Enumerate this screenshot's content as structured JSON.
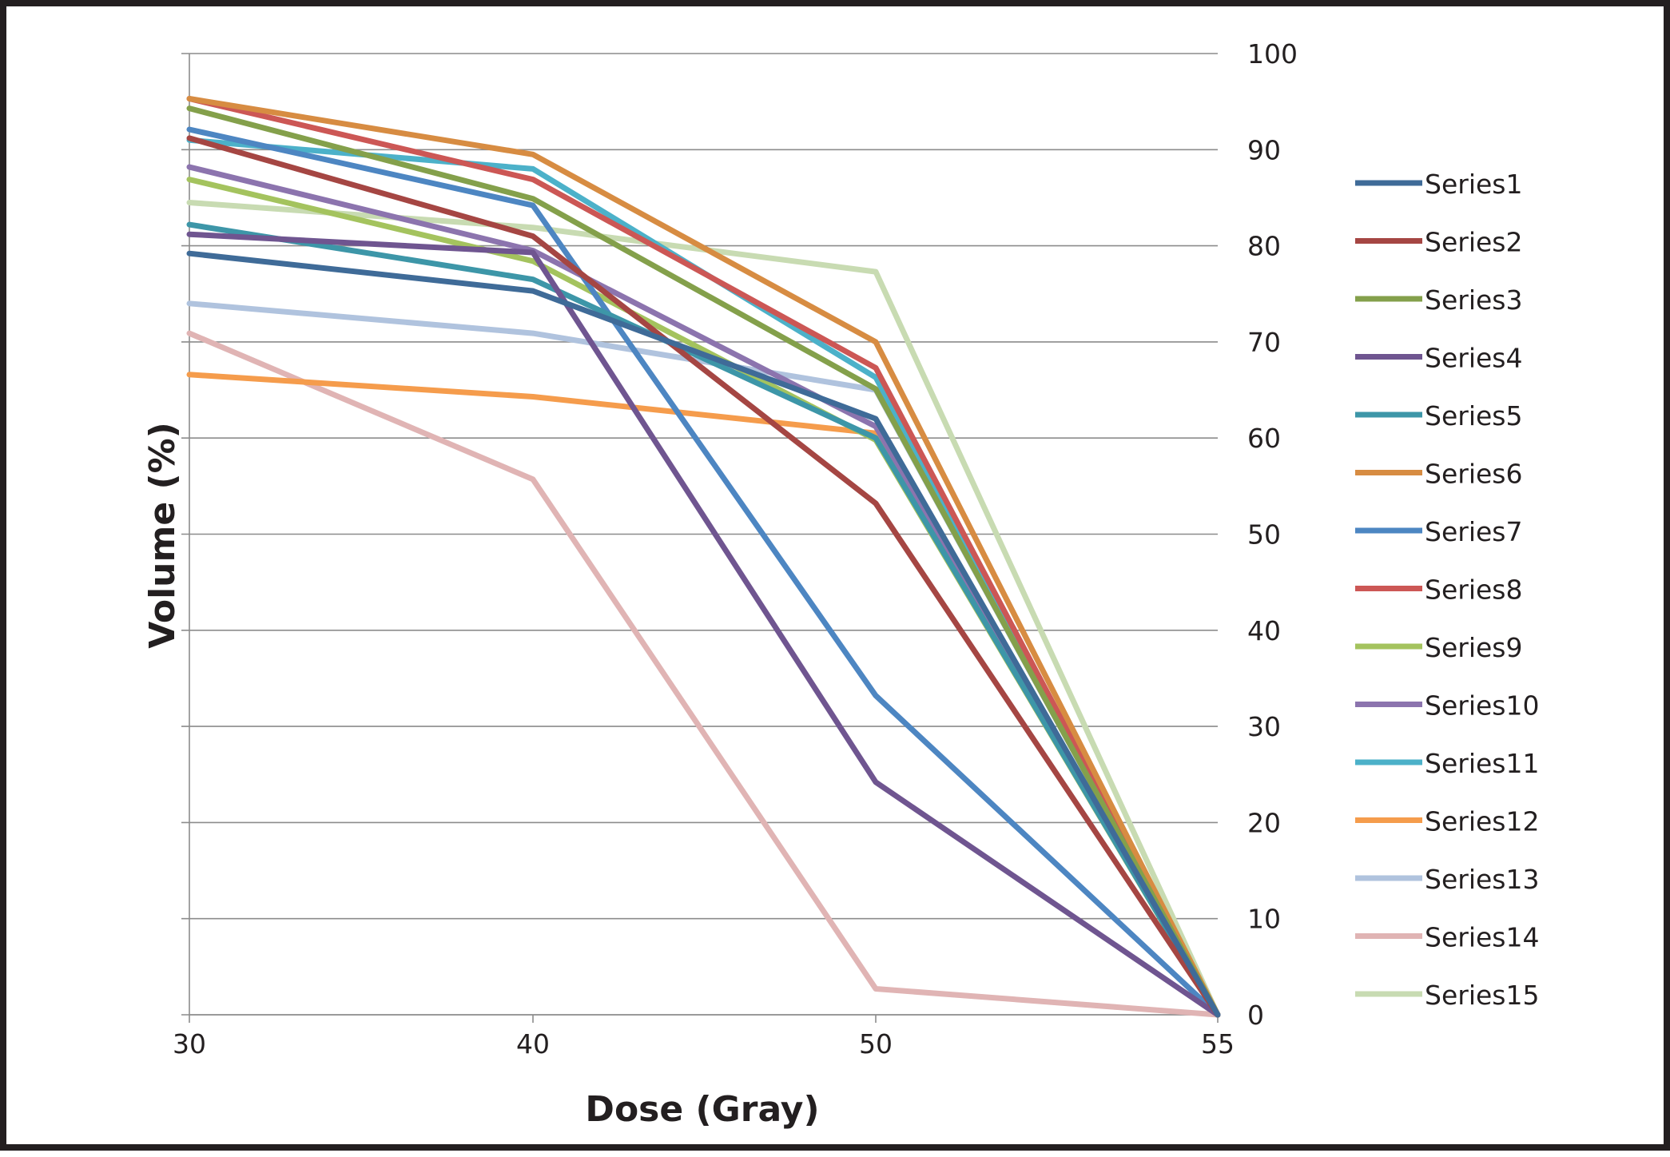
{
  "chart_data": {
    "type": "line",
    "title": "",
    "xlabel": "Dose (Gray)",
    "ylabel": "Volume (%)",
    "x": [
      30,
      40,
      50,
      55
    ],
    "x_tick_labels": [
      "30",
      "40",
      "50",
      "55"
    ],
    "x_scale": "category",
    "ylim": [
      0,
      100
    ],
    "y_ticks": [
      0,
      10,
      20,
      30,
      40,
      50,
      60,
      70,
      80,
      90,
      100
    ],
    "y_axis_side": "right",
    "grid": "horizontal",
    "legend_position": "right",
    "series": [
      {
        "name": "Series1",
        "color": "#3f6b98",
        "values": [
          79.2,
          75.3,
          62.0,
          0
        ]
      },
      {
        "name": "Series2",
        "color": "#a54643",
        "values": [
          91.2,
          81.0,
          53.2,
          0
        ]
      },
      {
        "name": "Series3",
        "color": "#84a04b",
        "values": [
          94.3,
          84.9,
          65.1,
          0
        ]
      },
      {
        "name": "Series4",
        "color": "#6f5590",
        "values": [
          81.2,
          79.3,
          24.2,
          0
        ]
      },
      {
        "name": "Series5",
        "color": "#3d96a8",
        "values": [
          82.2,
          76.5,
          60.0,
          0
        ]
      },
      {
        "name": "Series6",
        "color": "#d78c42",
        "values": [
          95.3,
          89.5,
          70.0,
          0
        ]
      },
      {
        "name": "Series7",
        "color": "#4d86c2",
        "values": [
          92.1,
          84.2,
          33.2,
          0
        ]
      },
      {
        "name": "Series8",
        "color": "#cc5755",
        "values": [
          95.3,
          86.9,
          67.3,
          0
        ]
      },
      {
        "name": "Series9",
        "color": "#a4c35e",
        "values": [
          86.9,
          78.4,
          59.8,
          0
        ]
      },
      {
        "name": "Series10",
        "color": "#8c74ae",
        "values": [
          88.2,
          79.5,
          61.2,
          0
        ]
      },
      {
        "name": "Series11",
        "color": "#4cb1c9",
        "values": [
          91.0,
          88.0,
          66.3,
          0
        ]
      },
      {
        "name": "Series12",
        "color": "#f59c4c",
        "values": [
          66.6,
          64.3,
          60.5,
          0
        ]
      },
      {
        "name": "Series13",
        "color": "#b0c3de",
        "values": [
          74.0,
          70.9,
          65.0,
          0
        ]
      },
      {
        "name": "Series14",
        "color": "#e0b4b4",
        "values": [
          70.9,
          55.7,
          2.7,
          0
        ]
      },
      {
        "name": "Series15",
        "color": "#c8dbb2",
        "values": [
          84.5,
          81.9,
          77.3,
          0
        ]
      }
    ]
  }
}
